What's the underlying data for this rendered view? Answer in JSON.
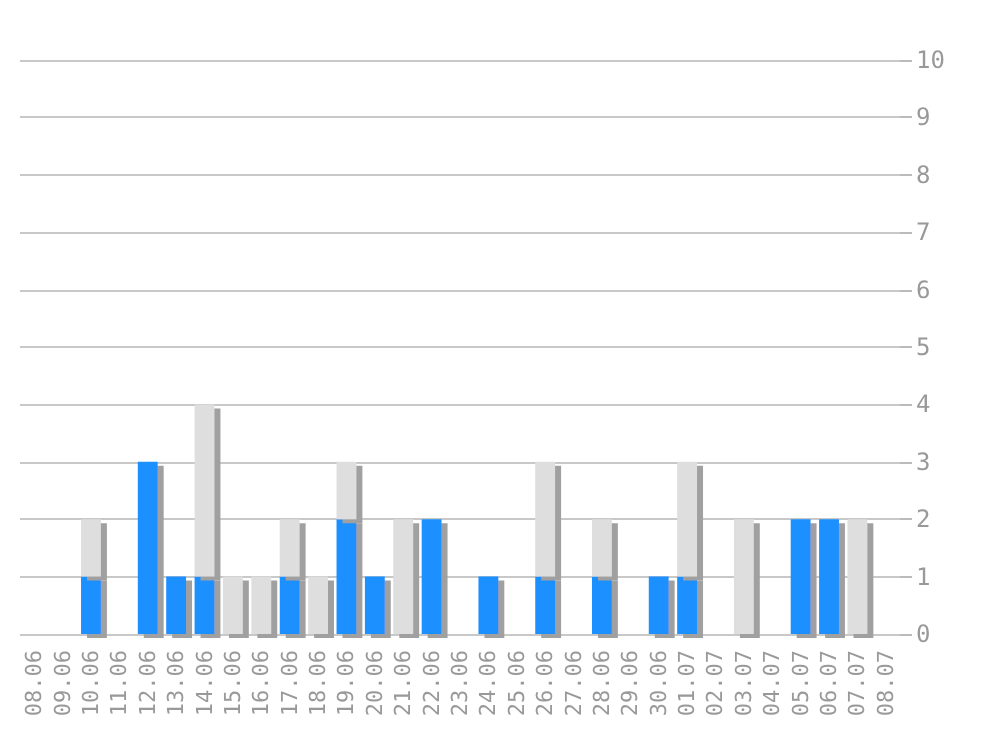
{
  "chart_data": {
    "type": "bar",
    "stacked": true,
    "categories": [
      "08.06",
      "09.06",
      "10.06",
      "11.06",
      "12.06",
      "13.06",
      "14.06",
      "15.06",
      "16.06",
      "17.06",
      "18.06",
      "19.06",
      "20.06",
      "21.06",
      "22.06",
      "23.06",
      "24.06",
      "25.06",
      "26.06",
      "27.06",
      "28.06",
      "29.06",
      "30.06",
      "01.07",
      "02.07",
      "03.07",
      "04.07",
      "05.07",
      "06.07",
      "07.07",
      "08.07"
    ],
    "series": [
      {
        "color": "#1e90ff",
        "values": [
          0,
          0,
          1,
          0,
          3,
          1,
          1,
          0,
          0,
          1,
          0,
          2,
          1,
          0,
          2,
          0,
          1,
          0,
          1,
          0,
          1,
          0,
          1,
          1,
          0,
          0,
          0,
          2,
          2,
          0,
          0
        ]
      },
      {
        "color": "#dedede",
        "values": [
          0,
          0,
          1,
          0,
          0,
          0,
          3,
          1,
          1,
          1,
          1,
          1,
          0,
          2,
          0,
          0,
          0,
          0,
          2,
          0,
          1,
          0,
          0,
          2,
          0,
          2,
          0,
          0,
          0,
          2,
          0
        ]
      }
    ],
    "ylim": [
      0,
      10
    ],
    "yticks": [
      0,
      1,
      2,
      3,
      4,
      5,
      6,
      7,
      8,
      9,
      10
    ],
    "grid": "y"
  }
}
